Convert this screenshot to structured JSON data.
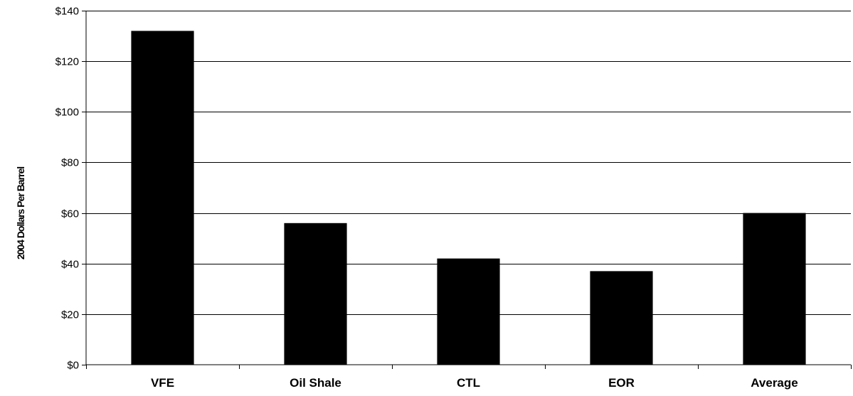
{
  "chart_data": {
    "type": "bar",
    "title": "",
    "xlabel": "",
    "ylabel": "2004 Dollars Per Barrel",
    "categories": [
      "VFE",
      "Oil Shale",
      "CTL",
      "EOR",
      "Average"
    ],
    "values": [
      132,
      56,
      42,
      37,
      60
    ],
    "ylim": [
      0,
      140
    ],
    "yticks": [
      0,
      20,
      40,
      60,
      80,
      100,
      120,
      140
    ],
    "ytick_labels": [
      "$0",
      "$20",
      "$40",
      "$60",
      "$80",
      "$100",
      "$120",
      "$140"
    ],
    "grid": true,
    "legend": "none",
    "colors": {
      "bar": "#000000",
      "grid": "#000000",
      "background": "#ffffff"
    }
  }
}
